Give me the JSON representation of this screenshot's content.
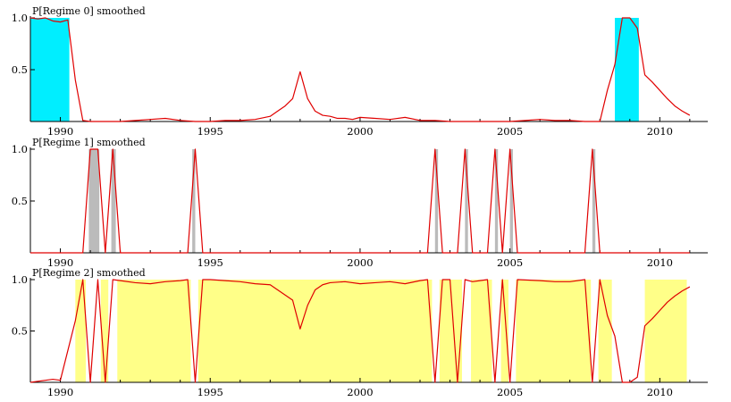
{
  "colors": {
    "line": "#e00000",
    "regime0_fill": "#00eeff",
    "regime1_fill": "#bbbbbb",
    "regime2_fill": "#ffff88",
    "axis": "#000000"
  },
  "chart_data": [
    {
      "type": "area",
      "title": "P[Regime 0] smoothed",
      "xlim": [
        1989.0,
        2011.6
      ],
      "ylim": [
        0.0,
        1.0
      ],
      "x_ticks": [
        1990,
        1995,
        2000,
        2005,
        2010
      ],
      "y_ticks": [
        0.5,
        1.0
      ],
      "y_tick_labels": [
        "0.5",
        "1.0"
      ],
      "shaded_periods": [
        [
          1989.0,
          1990.3
        ],
        [
          2008.5,
          2009.3
        ]
      ],
      "series": [
        {
          "x": [
            1989.0,
            1989.25,
            1989.5,
            1989.75,
            1990.0,
            1990.25,
            1990.5,
            1990.75,
            1991.0,
            1991.5,
            1992.0,
            1992.5,
            1993.0,
            1993.5,
            1994.0,
            1994.5,
            1995.0,
            1995.5,
            1996.0,
            1996.5,
            1997.0,
            1997.25,
            1997.5,
            1997.75,
            1998.0,
            1998.25,
            1998.5,
            1998.75,
            1999.0,
            1999.25,
            1999.5,
            1999.75,
            2000.0,
            2000.5,
            2001.0,
            2001.5,
            2002.0,
            2002.5,
            2003.0,
            2003.5,
            2004.0,
            2004.5,
            2005.0,
            2005.5,
            2006.0,
            2006.5,
            2007.0,
            2007.5,
            2008.0,
            2008.25,
            2008.5,
            2008.75,
            2009.0,
            2009.25,
            2009.5,
            2009.75,
            2010.0,
            2010.25,
            2010.5,
            2010.75,
            2011.0
          ],
          "y": [
            1.0,
            0.99,
            1.0,
            0.97,
            0.96,
            0.98,
            0.4,
            0.01,
            0.0,
            0.0,
            0.0,
            0.01,
            0.02,
            0.03,
            0.01,
            0.0,
            0.0,
            0.01,
            0.01,
            0.02,
            0.05,
            0.1,
            0.15,
            0.22,
            0.48,
            0.22,
            0.1,
            0.06,
            0.05,
            0.03,
            0.03,
            0.02,
            0.04,
            0.03,
            0.02,
            0.04,
            0.01,
            0.01,
            0.0,
            0.0,
            0.0,
            0.0,
            0.0,
            0.01,
            0.02,
            0.01,
            0.01,
            0.0,
            0.0,
            0.3,
            0.55,
            1.0,
            1.0,
            0.9,
            0.45,
            0.38,
            0.3,
            0.22,
            0.15,
            0.1,
            0.06
          ]
        }
      ]
    },
    {
      "type": "area",
      "title": "P[Regime 1] smoothed",
      "xlim": [
        1989.0,
        2011.6
      ],
      "ylim": [
        0.0,
        1.0
      ],
      "x_ticks": [
        1990,
        1995,
        2000,
        2005,
        2010
      ],
      "y_ticks": [
        0.5,
        1.0
      ],
      "y_tick_labels": [
        "0.5",
        "1.0"
      ],
      "shaded_periods": [
        [
          1990.95,
          1991.3
        ],
        [
          1991.7,
          1991.85
        ],
        [
          1994.4,
          1994.5
        ],
        [
          2002.5,
          2002.6
        ],
        [
          2003.5,
          2003.6
        ],
        [
          2004.5,
          2004.6
        ],
        [
          2005.0,
          2005.1
        ],
        [
          2007.75,
          2007.85
        ]
      ],
      "series": [
        {
          "x": [
            1989.0,
            1990.75,
            1991.0,
            1991.25,
            1991.5,
            1991.75,
            1992.0,
            1994.25,
            1994.5,
            1994.75,
            2002.25,
            2002.5,
            2002.75,
            2003.25,
            2003.5,
            2003.75,
            2004.25,
            2004.5,
            2004.75,
            2005.0,
            2005.25,
            2007.5,
            2007.75,
            2008.0,
            2011.0
          ],
          "y": [
            0.0,
            0.0,
            1.0,
            1.0,
            0.0,
            1.0,
            0.0,
            0.0,
            1.0,
            0.0,
            0.0,
            1.0,
            0.0,
            0.0,
            1.0,
            0.0,
            0.0,
            1.0,
            0.0,
            1.0,
            0.0,
            0.0,
            1.0,
            0.0,
            0.0
          ]
        }
      ]
    },
    {
      "type": "area",
      "title": "P[Regime 2] smoothed",
      "xlim": [
        1989.0,
        2011.6
      ],
      "ylim": [
        0.0,
        1.0
      ],
      "x_ticks": [
        1990,
        1995,
        2000,
        2005,
        2010
      ],
      "y_ticks": [
        0.5,
        1.0
      ],
      "y_tick_labels": [
        "0.5",
        "1.0"
      ],
      "shaded_periods": [
        [
          1990.5,
          1990.85
        ],
        [
          1991.35,
          1991.6
        ],
        [
          1991.9,
          1994.35
        ],
        [
          1994.6,
          2002.4
        ],
        [
          2002.65,
          2003.4
        ],
        [
          2003.7,
          2004.4
        ],
        [
          2004.7,
          2004.95
        ],
        [
          2005.2,
          2007.7
        ],
        [
          2007.95,
          2008.4
        ],
        [
          2009.5,
          2010.9
        ]
      ],
      "series": [
        {
          "x": [
            1989.0,
            1989.5,
            1989.75,
            1990.0,
            1990.5,
            1990.75,
            1991.0,
            1991.25,
            1991.5,
            1991.75,
            1992.0,
            1992.5,
            1993.0,
            1993.5,
            1994.0,
            1994.25,
            1994.5,
            1994.75,
            1995.0,
            1995.5,
            1996.0,
            1996.5,
            1997.0,
            1997.25,
            1997.5,
            1997.75,
            1998.0,
            1998.25,
            1998.5,
            1998.75,
            1999.0,
            1999.5,
            2000.0,
            2000.5,
            2001.0,
            2001.5,
            2002.0,
            2002.25,
            2002.5,
            2002.75,
            2003.0,
            2003.25,
            2003.5,
            2003.75,
            2004.0,
            2004.25,
            2004.5,
            2004.75,
            2005.0,
            2005.25,
            2006.0,
            2006.5,
            2007.0,
            2007.5,
            2007.75,
            2008.0,
            2008.25,
            2008.5,
            2008.75,
            2009.0,
            2009.25,
            2009.5,
            2009.75,
            2010.0,
            2010.25,
            2010.5,
            2010.75,
            2011.0
          ],
          "y": [
            0.0,
            0.02,
            0.03,
            0.02,
            0.6,
            1.0,
            0.0,
            1.0,
            0.0,
            1.0,
            0.99,
            0.97,
            0.96,
            0.98,
            0.99,
            1.0,
            0.0,
            1.0,
            1.0,
            0.99,
            0.98,
            0.96,
            0.95,
            0.9,
            0.85,
            0.8,
            0.52,
            0.75,
            0.9,
            0.95,
            0.97,
            0.98,
            0.96,
            0.97,
            0.98,
            0.96,
            0.99,
            1.0,
            0.0,
            1.0,
            1.0,
            0.0,
            1.0,
            0.98,
            0.99,
            1.0,
            0.0,
            1.0,
            0.0,
            1.0,
            0.99,
            0.98,
            0.98,
            1.0,
            0.0,
            1.0,
            0.65,
            0.45,
            0.0,
            0.0,
            0.05,
            0.55,
            0.62,
            0.7,
            0.78,
            0.84,
            0.89,
            0.93
          ]
        }
      ]
    }
  ]
}
